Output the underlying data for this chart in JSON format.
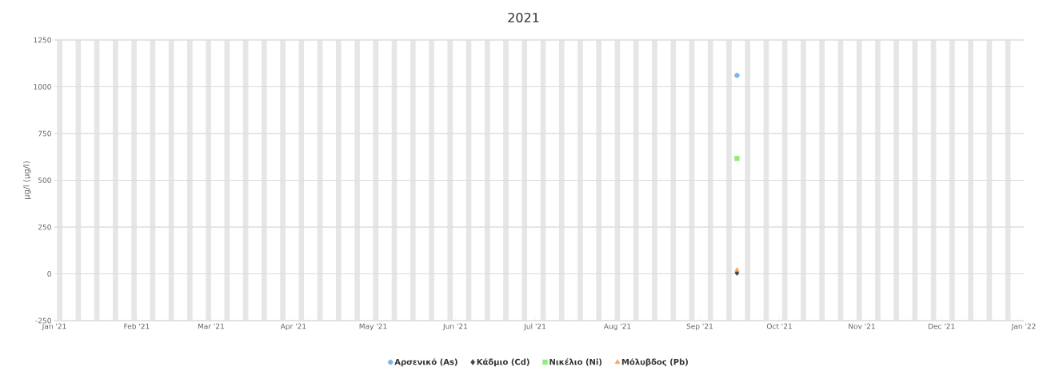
{
  "chart_data": {
    "type": "scatter",
    "title": "2021",
    "ylabel": "μg/l (μg/l)",
    "x": [
      "2021-09-15"
    ],
    "series": [
      {
        "name": "Αρσενικό (As)",
        "color": "#7cb5ec",
        "marker": "circle",
        "values": [
          1061
        ]
      },
      {
        "name": "Κάδμιο (Cd)",
        "color": "#434348",
        "marker": "diamond",
        "values": [
          5
        ]
      },
      {
        "name": "Νικέλιο (Ni)",
        "color": "#90ed7d",
        "marker": "square",
        "values": [
          617
        ]
      },
      {
        "name": "Μόλυβδος (Pb)",
        "color": "#f7a35c",
        "marker": "triangle",
        "values": [
          20
        ]
      }
    ],
    "xlim": [
      "2021-01-01",
      "2022-01-01"
    ],
    "xticks": [
      {
        "value": "2021-01-01",
        "label": "Jan '21"
      },
      {
        "value": "2021-02-01",
        "label": "Feb '21"
      },
      {
        "value": "2021-03-01",
        "label": "Mar '21"
      },
      {
        "value": "2021-04-01",
        "label": "Apr '21"
      },
      {
        "value": "2021-05-01",
        "label": "May '21"
      },
      {
        "value": "2021-06-01",
        "label": "Jun '21"
      },
      {
        "value": "2021-07-01",
        "label": "Jul '21"
      },
      {
        "value": "2021-08-01",
        "label": "Aug '21"
      },
      {
        "value": "2021-09-01",
        "label": "Sep '21"
      },
      {
        "value": "2021-10-01",
        "label": "Oct '21"
      },
      {
        "value": "2021-11-01",
        "label": "Nov '21"
      },
      {
        "value": "2021-12-01",
        "label": "Dec '21"
      },
      {
        "value": "2022-01-01",
        "label": "Jan '22"
      }
    ],
    "ylim": [
      -250,
      1250
    ],
    "yticks": [
      -250,
      0,
      250,
      500,
      750,
      1000,
      1250
    ],
    "grid": "y",
    "legend": "bottom",
    "bands": [
      {
        "axis": "x",
        "from": "2021-01-02",
        "to": "2021-01-04",
        "color": "#e6e6e6"
      },
      {
        "axis": "x",
        "from": "2021-01-09",
        "to": "2021-01-11",
        "color": "#e6e6e6"
      },
      {
        "axis": "x",
        "from": "2021-01-16",
        "to": "2021-01-18",
        "color": "#e6e6e6"
      },
      {
        "axis": "x",
        "from": "2021-01-23",
        "to": "2021-01-25",
        "color": "#e6e6e6"
      },
      {
        "axis": "x",
        "from": "2021-01-30",
        "to": "2021-02-01",
        "color": "#e6e6e6"
      },
      {
        "axis": "x",
        "from": "2021-02-06",
        "to": "2021-02-08",
        "color": "#e6e6e6"
      },
      {
        "axis": "x",
        "from": "2021-02-13",
        "to": "2021-02-15",
        "color": "#e6e6e6"
      },
      {
        "axis": "x",
        "from": "2021-02-20",
        "to": "2021-02-22",
        "color": "#e6e6e6"
      },
      {
        "axis": "x",
        "from": "2021-02-27",
        "to": "2021-03-01",
        "color": "#e6e6e6"
      },
      {
        "axis": "x",
        "from": "2021-03-06",
        "to": "2021-03-08",
        "color": "#e6e6e6"
      },
      {
        "axis": "x",
        "from": "2021-03-13",
        "to": "2021-03-15",
        "color": "#e6e6e6"
      },
      {
        "axis": "x",
        "from": "2021-03-20",
        "to": "2021-03-22",
        "color": "#e6e6e6"
      },
      {
        "axis": "x",
        "from": "2021-03-27",
        "to": "2021-03-29",
        "color": "#e6e6e6"
      },
      {
        "axis": "x",
        "from": "2021-04-03",
        "to": "2021-04-05",
        "color": "#e6e6e6"
      },
      {
        "axis": "x",
        "from": "2021-04-10",
        "to": "2021-04-12",
        "color": "#e6e6e6"
      },
      {
        "axis": "x",
        "from": "2021-04-17",
        "to": "2021-04-19",
        "color": "#e6e6e6"
      },
      {
        "axis": "x",
        "from": "2021-04-24",
        "to": "2021-04-26",
        "color": "#e6e6e6"
      },
      {
        "axis": "x",
        "from": "2021-05-01",
        "to": "2021-05-03",
        "color": "#e6e6e6"
      },
      {
        "axis": "x",
        "from": "2021-05-08",
        "to": "2021-05-10",
        "color": "#e6e6e6"
      },
      {
        "axis": "x",
        "from": "2021-05-15",
        "to": "2021-05-17",
        "color": "#e6e6e6"
      },
      {
        "axis": "x",
        "from": "2021-05-22",
        "to": "2021-05-24",
        "color": "#e6e6e6"
      },
      {
        "axis": "x",
        "from": "2021-05-29",
        "to": "2021-05-31",
        "color": "#e6e6e6"
      },
      {
        "axis": "x",
        "from": "2021-06-05",
        "to": "2021-06-07",
        "color": "#e6e6e6"
      },
      {
        "axis": "x",
        "from": "2021-06-12",
        "to": "2021-06-14",
        "color": "#e6e6e6"
      },
      {
        "axis": "x",
        "from": "2021-06-19",
        "to": "2021-06-21",
        "color": "#e6e6e6"
      },
      {
        "axis": "x",
        "from": "2021-06-26",
        "to": "2021-06-28",
        "color": "#e6e6e6"
      },
      {
        "axis": "x",
        "from": "2021-07-03",
        "to": "2021-07-05",
        "color": "#e6e6e6"
      },
      {
        "axis": "x",
        "from": "2021-07-10",
        "to": "2021-07-12",
        "color": "#e6e6e6"
      },
      {
        "axis": "x",
        "from": "2021-07-17",
        "to": "2021-07-19",
        "color": "#e6e6e6"
      },
      {
        "axis": "x",
        "from": "2021-07-24",
        "to": "2021-07-26",
        "color": "#e6e6e6"
      },
      {
        "axis": "x",
        "from": "2021-07-31",
        "to": "2021-08-02",
        "color": "#e6e6e6"
      },
      {
        "axis": "x",
        "from": "2021-08-07",
        "to": "2021-08-09",
        "color": "#e6e6e6"
      },
      {
        "axis": "x",
        "from": "2021-08-14",
        "to": "2021-08-16",
        "color": "#e6e6e6"
      },
      {
        "axis": "x",
        "from": "2021-08-21",
        "to": "2021-08-23",
        "color": "#e6e6e6"
      },
      {
        "axis": "x",
        "from": "2021-08-28",
        "to": "2021-08-30",
        "color": "#e6e6e6"
      },
      {
        "axis": "x",
        "from": "2021-09-04",
        "to": "2021-09-06",
        "color": "#e6e6e6"
      },
      {
        "axis": "x",
        "from": "2021-09-11",
        "to": "2021-09-13",
        "color": "#e6e6e6"
      },
      {
        "axis": "x",
        "from": "2021-09-18",
        "to": "2021-09-20",
        "color": "#e6e6e6"
      },
      {
        "axis": "x",
        "from": "2021-09-25",
        "to": "2021-09-27",
        "color": "#e6e6e6"
      },
      {
        "axis": "x",
        "from": "2021-10-02",
        "to": "2021-10-04",
        "color": "#e6e6e6"
      },
      {
        "axis": "x",
        "from": "2021-10-09",
        "to": "2021-10-11",
        "color": "#e6e6e6"
      },
      {
        "axis": "x",
        "from": "2021-10-16",
        "to": "2021-10-18",
        "color": "#e6e6e6"
      },
      {
        "axis": "x",
        "from": "2021-10-23",
        "to": "2021-10-25",
        "color": "#e6e6e6"
      },
      {
        "axis": "x",
        "from": "2021-10-30",
        "to": "2021-11-01",
        "color": "#e6e6e6"
      },
      {
        "axis": "x",
        "from": "2021-11-06",
        "to": "2021-11-08",
        "color": "#e6e6e6"
      },
      {
        "axis": "x",
        "from": "2021-11-13",
        "to": "2021-11-15",
        "color": "#e6e6e6"
      },
      {
        "axis": "x",
        "from": "2021-11-20",
        "to": "2021-11-22",
        "color": "#e6e6e6"
      },
      {
        "axis": "x",
        "from": "2021-11-27",
        "to": "2021-11-29",
        "color": "#e6e6e6"
      },
      {
        "axis": "x",
        "from": "2021-12-04",
        "to": "2021-12-06",
        "color": "#e6e6e6"
      },
      {
        "axis": "x",
        "from": "2021-12-11",
        "to": "2021-12-13",
        "color": "#e6e6e6"
      },
      {
        "axis": "x",
        "from": "2021-12-18",
        "to": "2021-12-20",
        "color": "#e6e6e6"
      },
      {
        "axis": "x",
        "from": "2021-12-25",
        "to": "2021-12-27",
        "color": "#e6e6e6"
      }
    ]
  }
}
